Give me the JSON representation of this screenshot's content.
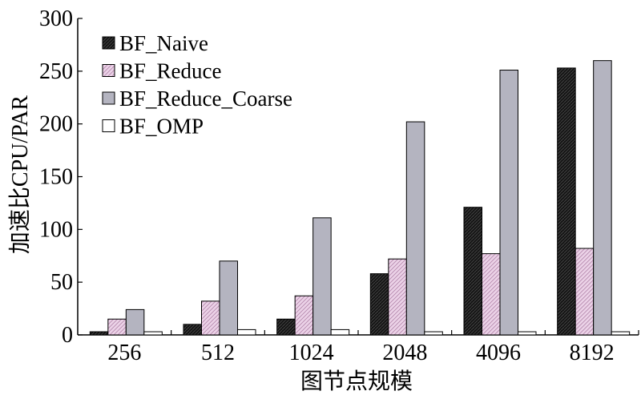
{
  "chart_data": {
    "type": "bar",
    "title": "",
    "xlabel": "图节点规模",
    "ylabel": "加速比CPU/PAR",
    "categories": [
      "256",
      "512",
      "1024",
      "2048",
      "4096",
      "8192"
    ],
    "ylim": [
      0,
      300
    ],
    "yticks": [
      "0",
      "50",
      "100",
      "150",
      "200",
      "250",
      "300"
    ],
    "grid": false,
    "legend_position": "top-left",
    "series": [
      {
        "name": "BF_Naive",
        "values": [
          3,
          10,
          15,
          58,
          121,
          253
        ],
        "color": "#111111",
        "pattern": "dark-hatch"
      },
      {
        "name": "BF_Reduce",
        "values": [
          15,
          32,
          37,
          72,
          77,
          82
        ],
        "color": "#e6c8e1",
        "pattern": "pink-hatch"
      },
      {
        "name": "BF_Reduce_Coarse",
        "values": [
          24,
          70,
          111,
          202,
          251,
          260
        ],
        "color": "#b4b4c0",
        "pattern": "solid"
      },
      {
        "name": "BF_OMP",
        "values": [
          3,
          5,
          5,
          3,
          3,
          3
        ],
        "color": "#ffffff",
        "pattern": "solid"
      }
    ]
  }
}
